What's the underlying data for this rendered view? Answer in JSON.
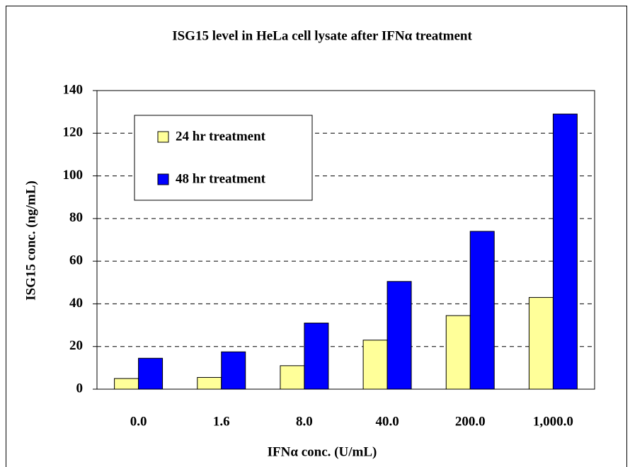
{
  "chart_data": {
    "type": "bar",
    "title": "ISG15 level in HeLa cell lysate after IFNα treatment",
    "x_label": "IFNα conc. (U/mL)",
    "y_label": "ISG15 conc. (ng/mL)",
    "categories": [
      "0.0",
      "1.6",
      "8.0",
      "40.0",
      "200.0",
      "1,000.0"
    ],
    "series": [
      {
        "name": "24 hr treatment",
        "color": "#ffff99",
        "values": [
          5,
          5.5,
          11,
          23,
          34.5,
          43
        ]
      },
      {
        "name": "48 hr treatment",
        "color": "#0000ff",
        "values": [
          14.5,
          17.5,
          31,
          50.5,
          74,
          129
        ]
      }
    ],
    "ylim": [
      0,
      140
    ],
    "yticks": [
      0,
      20,
      40,
      60,
      80,
      100,
      120,
      140
    ],
    "grid": true
  }
}
